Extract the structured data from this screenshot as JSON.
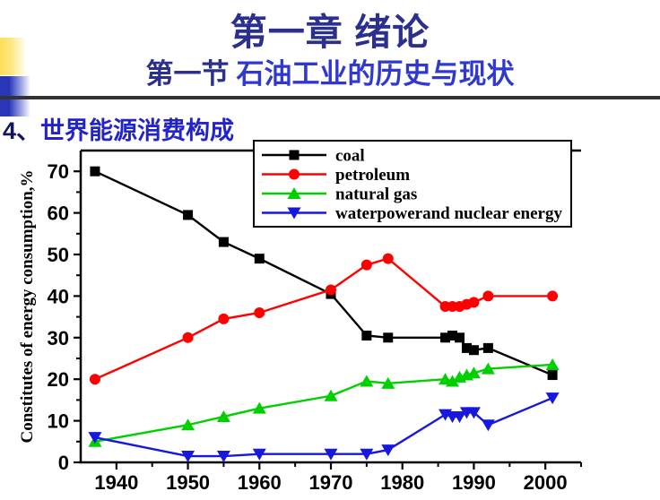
{
  "header": {
    "title": "第一章 绪论",
    "title_color": "#2B2F8E",
    "subtitle_prefix": "第一节",
    "subtitle_prefix_color": "#2B2F8E",
    "subtitle_text": "石油工业的历史与现状",
    "subtitle_text_color": "#2F39D0"
  },
  "section": {
    "number": "4、",
    "number_color": "#15155E",
    "title": "世界能源消费构成",
    "title_color": "#2323CC"
  },
  "decorations": {
    "yellow_bar_color": "#FFDE59",
    "blue_bar_color": "#2936B8",
    "divider_color": "#333333"
  },
  "chart_data": {
    "type": "line",
    "title": "",
    "xlabel": "",
    "ylabel": "Constitutes of energy consumption,%",
    "xlim": [
      1935,
      2005
    ],
    "ylim": [
      0,
      75
    ],
    "x_ticks": [
      1940,
      1950,
      1960,
      1970,
      1980,
      1990,
      2000
    ],
    "x_minor_ticks": [
      1945,
      1955,
      1965,
      1975,
      1985,
      1995,
      2005
    ],
    "y_ticks": [
      0,
      10,
      20,
      30,
      40,
      50,
      60,
      70
    ],
    "y_minor_ticks": [
      5,
      15,
      25,
      35,
      45,
      55,
      65
    ],
    "grid": false,
    "legend_position": "top-center-inside",
    "axis_color": "#000000",
    "x": [
      1937,
      1950,
      1955,
      1960,
      1970,
      1975,
      1978,
      1986,
      1987,
      1988,
      1989,
      1990,
      1992,
      2001
    ],
    "series": [
      {
        "name": "coal",
        "color": "#000000",
        "marker": "square",
        "values": [
          70,
          59.5,
          53,
          49,
          40.5,
          30.5,
          30,
          30,
          30.5,
          30,
          27.5,
          27,
          27.5,
          21
        ]
      },
      {
        "name": "petroleum",
        "color": "#FF0000",
        "marker": "circle",
        "values": [
          20,
          30,
          34.5,
          36,
          41.5,
          47.5,
          49,
          37.5,
          37.5,
          37.5,
          38,
          38.5,
          40,
          40
        ]
      },
      {
        "name": "natural gas",
        "color": "#00D000",
        "marker": "triangle-up",
        "values": [
          5,
          9,
          11,
          13,
          16,
          19.5,
          19,
          20,
          19.5,
          20.5,
          21,
          21.5,
          22.5,
          23.5
        ]
      },
      {
        "name": "waterpowerand nuclear energy",
        "color": "#1717DD",
        "marker": "triangle-down",
        "values": [
          6,
          1.5,
          1.5,
          2,
          2,
          2,
          3,
          11.5,
          11,
          11,
          12,
          12,
          9,
          15.5
        ]
      }
    ]
  }
}
